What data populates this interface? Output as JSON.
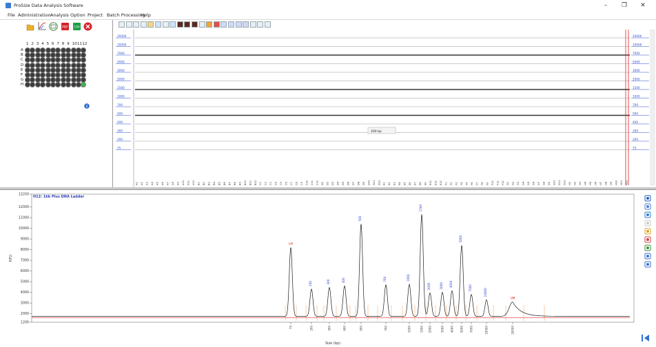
{
  "window": {
    "title": "ProSize Data Analysis Software",
    "minimize": "–",
    "maximize": "❐",
    "close": "✕"
  },
  "menu": [
    "File",
    "Administration",
    "Analysis",
    "Option",
    "Project",
    "Batch Processing",
    "Help"
  ],
  "plate": {
    "columns": [
      "1",
      "2",
      "3",
      "4",
      "5",
      "6",
      "7",
      "8",
      "9",
      "10",
      "11",
      "12"
    ],
    "rows": [
      "A",
      "B",
      "C",
      "D",
      "E",
      "F",
      "G",
      "H"
    ],
    "selected_well": "H12",
    "selected_color": "#3fb34f",
    "info_icon": "info-icon"
  },
  "gel": {
    "ladder_left": [
      "20000",
      "10000",
      "7000",
      "5000",
      "3000",
      "2000",
      "1500",
      "1000",
      "700",
      "500",
      "400",
      "300",
      "200",
      "75"
    ],
    "ladder_right": [
      "20000",
      "10000",
      "7000",
      "5000",
      "3000",
      "2000",
      "1500",
      "1000",
      "700",
      "500",
      "400",
      "300",
      "200",
      "75"
    ],
    "cursor_label": "200 bp",
    "lanes": [
      "A1",
      "A2",
      "A3",
      "A4",
      "A5",
      "A6",
      "A7",
      "A8",
      "A9",
      "A10",
      "A11",
      "A12",
      "B1",
      "B2",
      "B3",
      "B4",
      "B5",
      "B6",
      "B7",
      "B8",
      "B9",
      "B10",
      "B11",
      "B12",
      "C1",
      "C2",
      "C3",
      "C4",
      "C5",
      "C6",
      "C7",
      "C8",
      "C9",
      "C10",
      "C11",
      "C12",
      "D1",
      "D2",
      "D3",
      "D4",
      "D5",
      "D6",
      "D7",
      "D8",
      "D9",
      "D10",
      "D11",
      "D12",
      "E1",
      "E2",
      "E3",
      "E4",
      "E5",
      "E6",
      "E7",
      "E8",
      "E9",
      "E10",
      "E11",
      "E12",
      "F1",
      "F2",
      "F3",
      "F4",
      "F5",
      "F6",
      "F7",
      "F8",
      "F9",
      "F10",
      "F11",
      "F12",
      "G1",
      "G2",
      "G3",
      "G4",
      "G5",
      "G6",
      "G7",
      "G8",
      "G9",
      "G10",
      "G11",
      "G12",
      "H1",
      "H2",
      "H3",
      "H4",
      "H5",
      "H6",
      "H7",
      "H8",
      "H9",
      "H10",
      "H11",
      "H12"
    ]
  },
  "chart_data": {
    "type": "line",
    "title": "H12: 1kb Plus DNA Ladder",
    "xlabel": "Size (bp)",
    "ylabel": "RFU",
    "ylim": [
      1200,
      13200
    ],
    "yticks": [
      1200,
      2000,
      3000,
      4000,
      5000,
      6000,
      7000,
      8000,
      9000,
      10000,
      11000,
      12000,
      13200
    ],
    "baseline": 1750,
    "xticks": [
      "75",
      "200",
      "300",
      "400",
      "500",
      "700",
      "1000",
      "1500",
      "2000",
      "3000",
      "4000",
      "5000",
      "7000",
      "10000",
      "20000"
    ],
    "peaks": [
      {
        "label": "LM",
        "x": 75,
        "value": 8200,
        "color": "#e02020"
      },
      {
        "label": "200",
        "x": 200,
        "value": 4300,
        "color": "#3b4fd8"
      },
      {
        "label": "300",
        "x": 300,
        "value": 4450,
        "color": "#3b4fd8"
      },
      {
        "label": "400",
        "x": 400,
        "value": 4600,
        "color": "#3b4fd8"
      },
      {
        "label": "500",
        "x": 500,
        "value": 10400,
        "color": "#3b4fd8"
      },
      {
        "label": "700",
        "x": 700,
        "value": 4700,
        "color": "#3b4fd8"
      },
      {
        "label": "1000",
        "x": 1000,
        "value": 4750,
        "color": "#3b4fd8"
      },
      {
        "label": "1500",
        "x": 1500,
        "value": 11300,
        "color": "#3b4fd8"
      },
      {
        "label": "2000",
        "x": 2000,
        "value": 3950,
        "color": "#3b4fd8"
      },
      {
        "label": "3000",
        "x": 3000,
        "value": 4000,
        "color": "#3b4fd8"
      },
      {
        "label": "4000",
        "x": 4000,
        "value": 4150,
        "color": "#3b4fd8"
      },
      {
        "label": "5000",
        "x": 5000,
        "value": 8400,
        "color": "#3b4fd8"
      },
      {
        "label": "7000",
        "x": 7000,
        "value": 3800,
        "color": "#3b4fd8"
      },
      {
        "label": "10000",
        "x": 10000,
        "value": 3300,
        "color": "#3b4fd8"
      },
      {
        "label": "UM",
        "x": 20000,
        "value": 3100,
        "color": "#e02020"
      }
    ],
    "grid": false,
    "trace_color": "#1a1a1a",
    "ref_trace_color": "#e03030",
    "marker_line_color": "#f39a55"
  },
  "tools": {
    "plate_toolbar": [
      "open-folder-icon",
      "sizing-curve-icon",
      "layout-icon",
      "pdf-export-icon",
      "csv-export-icon",
      "close-circle-icon"
    ],
    "trace_toolbar_count": 21,
    "chart_tools": [
      "zoom-icon",
      "fit-icon",
      "move-icon",
      "screenshot-icon",
      "label-icon",
      "peak-color-icon",
      "peak-table-icon",
      "overlay-icon",
      "split-icon"
    ]
  }
}
